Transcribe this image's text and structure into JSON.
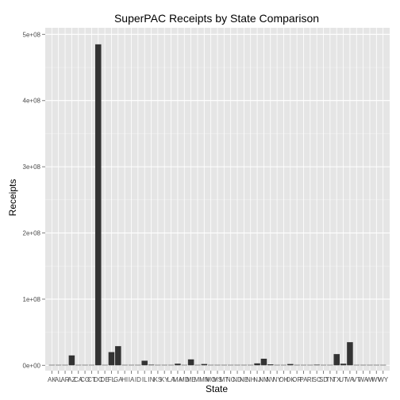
{
  "chart_data": {
    "type": "bar",
    "title": "SuperPAC Receipts by State Comparison",
    "xlabel": "State",
    "ylabel": "Receipts",
    "ylim": [
      -8000000,
      510000000
    ],
    "yticks": [
      0,
      100000000,
      200000000,
      300000000,
      400000000,
      500000000
    ],
    "ytick_labels": [
      "0e+00",
      "1e+08",
      "2e+08",
      "3e+08",
      "4e+08",
      "5e+08"
    ],
    "grid": true,
    "categories": [
      "AK",
      "AL",
      "AR",
      "AZ",
      "CA",
      "CO",
      "CT",
      "DC",
      "DE",
      "FL",
      "GA",
      "HI",
      "IA",
      "ID",
      "IL",
      "IN",
      "KS",
      "KY",
      "LA",
      "MA",
      "MD",
      "ME",
      "MI",
      "MN",
      "MO",
      "MS",
      "MT",
      "NC",
      "ND",
      "NE",
      "NH",
      "NJ",
      "NM",
      "NV",
      "NY",
      "OH",
      "OK",
      "OR",
      "PA",
      "RI",
      "SC",
      "SD",
      "TN",
      "TX",
      "UT",
      "VA",
      "VT",
      "WA",
      "WI",
      "WV",
      "WY"
    ],
    "values": [
      50000,
      100000,
      300000,
      15000000,
      300000,
      200000,
      500000,
      485000000,
      300000,
      20000000,
      29000000,
      50000,
      500000,
      50000,
      7000000,
      1000000,
      600000,
      300000,
      200000,
      2500000,
      500000,
      9000000,
      300000,
      2000000,
      500000,
      100000,
      50000,
      300000,
      50000,
      300000,
      500000,
      3000000,
      10000000,
      1500000,
      500000,
      300000,
      2000000,
      300000,
      50000,
      500000,
      1000000,
      200000,
      500000,
      17000000,
      2500000,
      35000000,
      200000,
      500000,
      100000,
      100000,
      50000
    ],
    "colors": {
      "panel": "#e5e5e5",
      "grid_major": "#ffffff",
      "grid_minor": "#f2f2f2",
      "bar": "#333333"
    }
  }
}
